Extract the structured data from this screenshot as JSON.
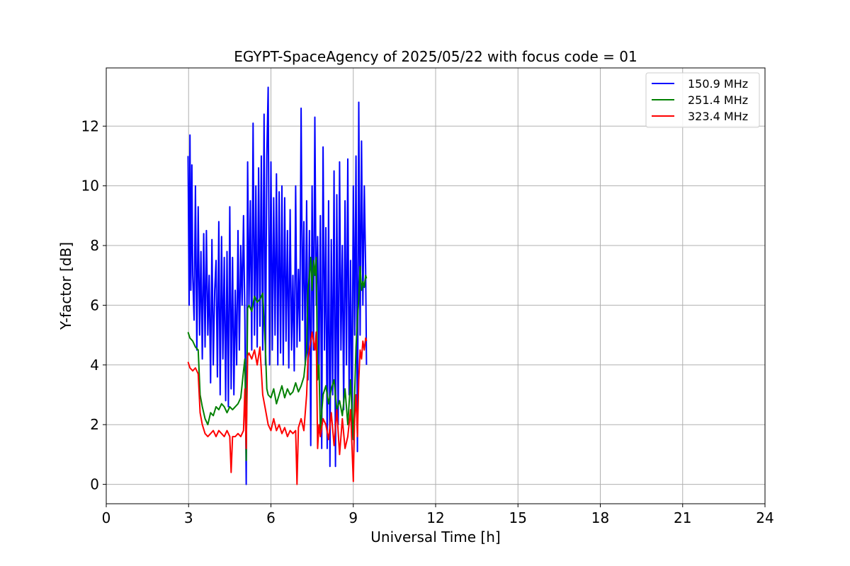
{
  "chart_data": {
    "type": "line",
    "title": "EGYPT-SpaceAgency of 2025/05/22 with focus code = 01",
    "xlabel": "Universal Time [h]",
    "ylabel": "Y-factor [dB]",
    "xlim": [
      0,
      24
    ],
    "ylim": [
      -0.65,
      13.95
    ],
    "xticks": [
      0,
      3,
      6,
      9,
      12,
      15,
      18,
      21,
      24
    ],
    "yticks": [
      0,
      2,
      4,
      6,
      8,
      10,
      12
    ],
    "grid": true,
    "legend_position": "top-right",
    "series": [
      {
        "name": "150.9 MHz",
        "color": "#0000ff",
        "x": [
          2.98,
          3.02,
          3.05,
          3.08,
          3.12,
          3.15,
          3.2,
          3.25,
          3.3,
          3.35,
          3.4,
          3.45,
          3.5,
          3.55,
          3.6,
          3.65,
          3.7,
          3.75,
          3.8,
          3.85,
          3.9,
          3.95,
          4.0,
          4.05,
          4.1,
          4.15,
          4.2,
          4.25,
          4.3,
          4.35,
          4.4,
          4.45,
          4.5,
          4.55,
          4.6,
          4.65,
          4.7,
          4.75,
          4.8,
          4.85,
          4.9,
          4.95,
          5.0,
          5.05,
          5.1,
          5.15,
          5.2,
          5.25,
          5.3,
          5.35,
          5.4,
          5.45,
          5.5,
          5.55,
          5.6,
          5.65,
          5.7,
          5.75,
          5.8,
          5.85,
          5.9,
          5.95,
          6.0,
          6.05,
          6.1,
          6.15,
          6.2,
          6.25,
          6.3,
          6.35,
          6.4,
          6.45,
          6.5,
          6.55,
          6.6,
          6.65,
          6.7,
          6.75,
          6.8,
          6.85,
          6.9,
          6.95,
          7.0,
          7.05,
          7.1,
          7.15,
          7.2,
          7.25,
          7.3,
          7.35,
          7.4,
          7.45,
          7.5,
          7.55,
          7.6,
          7.65,
          7.7,
          7.75,
          7.8,
          7.85,
          7.9,
          7.95,
          8.0,
          8.05,
          8.1,
          8.15,
          8.2,
          8.25,
          8.3,
          8.35,
          8.4,
          8.45,
          8.5,
          8.55,
          8.6,
          8.65,
          8.7,
          8.75,
          8.8,
          8.85,
          8.9,
          8.95,
          9.0,
          9.05,
          9.1,
          9.15,
          9.2,
          9.25,
          9.3,
          9.35,
          9.4,
          9.45,
          9.48
        ],
        "y": [
          11.0,
          6.0,
          11.7,
          6.5,
          10.7,
          7.0,
          5.5,
          10.0,
          4.5,
          9.3,
          5.0,
          7.8,
          4.2,
          8.4,
          4.6,
          8.5,
          5.0,
          7.0,
          3.4,
          8.2,
          4.0,
          6.5,
          7.5,
          3.6,
          8.8,
          3.0,
          8.3,
          4.2,
          7.6,
          2.8,
          7.8,
          2.6,
          9.3,
          3.2,
          7.6,
          3.0,
          6.5,
          4.0,
          8.5,
          4.5,
          8.0,
          6.0,
          9.0,
          5.5,
          0.0,
          10.8,
          6.0,
          9.5,
          4.5,
          12.1,
          5.0,
          10.0,
          4.6,
          10.6,
          5.3,
          11.0,
          4.5,
          12.4,
          4.0,
          11.0,
          13.3,
          4.0,
          10.8,
          4.5,
          9.6,
          5.0,
          10.4,
          4.0,
          9.8,
          4.4,
          10.0,
          4.0,
          9.6,
          4.8,
          8.5,
          3.9,
          9.2,
          4.5,
          7.0,
          3.8,
          10.0,
          4.6,
          7.2,
          4.8,
          12.6,
          5.5,
          8.8,
          4.0,
          9.5,
          3.5,
          8.5,
          1.3,
          10.0,
          4.5,
          12.3,
          6.0,
          8.3,
          4.0,
          9.0,
          1.2,
          11.3,
          4.5,
          8.6,
          1.2,
          9.5,
          0.6,
          8.2,
          3.0,
          10.5,
          0.6,
          9.7,
          2.0,
          10.8,
          4.5,
          8.0,
          2.5,
          9.5,
          4.0,
          10.9,
          3.0,
          7.5,
          1.5,
          10.0,
          5.0,
          11.0,
          1.1,
          12.8,
          5.0,
          11.5,
          6.0,
          10.0,
          7.2,
          4.0
        ]
      },
      {
        "name": "251.4 MHz",
        "color": "#008000",
        "x": [
          2.98,
          3.05,
          3.15,
          3.25,
          3.35,
          3.42,
          3.5,
          3.6,
          3.7,
          3.8,
          3.9,
          4.0,
          4.1,
          4.2,
          4.3,
          4.4,
          4.5,
          4.6,
          4.7,
          4.8,
          4.9,
          5.0,
          5.05,
          5.1,
          5.15,
          5.2,
          5.3,
          5.4,
          5.5,
          5.6,
          5.7,
          5.8,
          5.85,
          5.9,
          6.0,
          6.1,
          6.2,
          6.3,
          6.4,
          6.5,
          6.6,
          6.7,
          6.8,
          6.9,
          7.0,
          7.1,
          7.2,
          7.3,
          7.35,
          7.4,
          7.45,
          7.5,
          7.55,
          7.6,
          7.65,
          7.7,
          7.75,
          7.8,
          7.9,
          8.0,
          8.1,
          8.2,
          8.3,
          8.4,
          8.5,
          8.6,
          8.7,
          8.8,
          8.9,
          9.0,
          9.05,
          9.1,
          9.15,
          9.2,
          9.25,
          9.3,
          9.35,
          9.4,
          9.45,
          9.48
        ],
        "y": [
          5.1,
          4.9,
          4.8,
          4.6,
          4.5,
          3.0,
          2.6,
          2.2,
          2.0,
          2.4,
          2.3,
          2.6,
          2.5,
          2.7,
          2.6,
          2.4,
          2.6,
          2.5,
          2.6,
          2.7,
          2.9,
          3.8,
          4.2,
          0.8,
          5.9,
          6.0,
          5.8,
          6.3,
          6.1,
          6.2,
          6.4,
          4.5,
          3.2,
          3.0,
          2.9,
          3.2,
          2.7,
          3.0,
          3.3,
          2.9,
          3.2,
          3.0,
          3.1,
          3.4,
          3.1,
          3.3,
          3.6,
          4.5,
          6.5,
          7.0,
          7.6,
          6.5,
          7.5,
          7.0,
          7.6,
          3.5,
          4.0,
          1.8,
          3.0,
          3.3,
          2.7,
          3.2,
          3.5,
          2.5,
          2.8,
          2.3,
          3.2,
          2.0,
          3.5,
          1.5,
          3.0,
          4.6,
          5.5,
          6.2,
          7.3,
          6.5,
          6.8,
          6.6,
          7.0,
          6.9
        ]
      },
      {
        "name": "323.4 MHz",
        "color": "#ff0000",
        "x": [
          2.98,
          3.05,
          3.15,
          3.25,
          3.35,
          3.42,
          3.5,
          3.6,
          3.7,
          3.8,
          3.9,
          4.0,
          4.1,
          4.2,
          4.3,
          4.4,
          4.5,
          4.55,
          4.6,
          4.7,
          4.8,
          4.9,
          5.0,
          5.05,
          5.1,
          5.15,
          5.2,
          5.3,
          5.4,
          5.5,
          5.6,
          5.7,
          5.8,
          5.9,
          6.0,
          6.1,
          6.2,
          6.3,
          6.4,
          6.5,
          6.6,
          6.7,
          6.8,
          6.9,
          6.95,
          7.0,
          7.1,
          7.2,
          7.3,
          7.35,
          7.4,
          7.5,
          7.6,
          7.65,
          7.7,
          7.75,
          7.8,
          7.9,
          8.0,
          8.1,
          8.2,
          8.3,
          8.4,
          8.5,
          8.6,
          8.7,
          8.8,
          8.9,
          9.0,
          9.02,
          9.05,
          9.1,
          9.15,
          9.2,
          9.25,
          9.3,
          9.35,
          9.4,
          9.45,
          9.48
        ],
        "y": [
          4.1,
          3.9,
          3.8,
          3.9,
          3.7,
          2.4,
          2.0,
          1.7,
          1.6,
          1.7,
          1.8,
          1.6,
          1.8,
          1.7,
          1.6,
          1.8,
          1.6,
          0.4,
          1.6,
          1.6,
          1.7,
          1.6,
          1.8,
          3.2,
          1.2,
          4.3,
          4.4,
          4.2,
          4.5,
          4.0,
          4.6,
          3.0,
          2.5,
          2.0,
          1.8,
          2.2,
          1.8,
          2.0,
          1.7,
          1.9,
          1.6,
          1.8,
          1.7,
          1.8,
          0.0,
          1.9,
          2.2,
          1.8,
          3.0,
          4.2,
          4.5,
          5.1,
          4.5,
          5.1,
          1.2,
          2.0,
          1.6,
          2.2,
          2.0,
          1.5,
          2.4,
          1.3,
          2.5,
          1.0,
          2.2,
          1.2,
          1.6,
          2.5,
          0.1,
          1.0,
          2.2,
          3.0,
          1.6,
          3.5,
          4.5,
          4.2,
          4.8,
          4.5,
          4.9,
          4.8
        ]
      }
    ]
  }
}
